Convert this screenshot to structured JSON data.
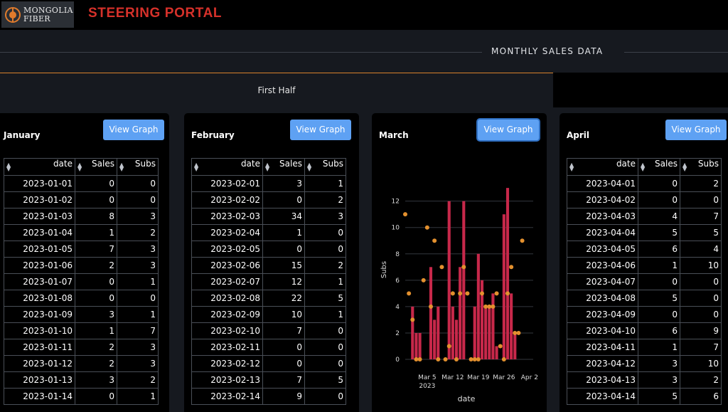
{
  "header": {
    "logo_line1": "MONGOLIA",
    "logo_line2": "FIBER",
    "title": "STEERING PORTAL"
  },
  "section": {
    "title": "MONTHLY SALES DATA"
  },
  "tabs": [
    {
      "label": "First Half",
      "active": true
    }
  ],
  "columns": {
    "date": "date",
    "sales": "Sales",
    "subs": "Subs"
  },
  "button_label": "View Graph",
  "colors": {
    "accent": "#d9822b",
    "title_red": "#d6312a",
    "button": "#5ea1f3",
    "bar": "#c7284a",
    "point": "#e3902e"
  },
  "months": [
    {
      "name": "January",
      "rows": [
        {
          "date": "2023-01-01",
          "sales": "0",
          "subs": "0"
        },
        {
          "date": "2023-01-02",
          "sales": "0",
          "subs": "0"
        },
        {
          "date": "2023-01-03",
          "sales": "8",
          "subs": "3"
        },
        {
          "date": "2023-01-04",
          "sales": "1",
          "subs": "2"
        },
        {
          "date": "2023-01-05",
          "sales": "7",
          "subs": "3"
        },
        {
          "date": "2023-01-06",
          "sales": "2",
          "subs": "3"
        },
        {
          "date": "2023-01-07",
          "sales": "0",
          "subs": "1"
        },
        {
          "date": "2023-01-08",
          "sales": "0",
          "subs": "0"
        },
        {
          "date": "2023-01-09",
          "sales": "3",
          "subs": "1"
        },
        {
          "date": "2023-01-10",
          "sales": "1",
          "subs": "7"
        },
        {
          "date": "2023-01-11",
          "sales": "2",
          "subs": "3"
        },
        {
          "date": "2023-01-12",
          "sales": "2",
          "subs": "3"
        },
        {
          "date": "2023-01-13",
          "sales": "3",
          "subs": "2"
        },
        {
          "date": "2023-01-14",
          "sales": "0",
          "subs": "1"
        }
      ]
    },
    {
      "name": "February",
      "rows": [
        {
          "date": "2023-02-01",
          "sales": "3",
          "subs": "1"
        },
        {
          "date": "2023-02-02",
          "sales": "0",
          "subs": "2"
        },
        {
          "date": "2023-02-03",
          "sales": "34",
          "subs": "3"
        },
        {
          "date": "2023-02-04",
          "sales": "1",
          "subs": "0"
        },
        {
          "date": "2023-02-05",
          "sales": "0",
          "subs": "0"
        },
        {
          "date": "2023-02-06",
          "sales": "15",
          "subs": "2"
        },
        {
          "date": "2023-02-07",
          "sales": "12",
          "subs": "1"
        },
        {
          "date": "2023-02-08",
          "sales": "22",
          "subs": "5"
        },
        {
          "date": "2023-02-09",
          "sales": "10",
          "subs": "1"
        },
        {
          "date": "2023-02-10",
          "sales": "7",
          "subs": "0"
        },
        {
          "date": "2023-02-11",
          "sales": "0",
          "subs": "0"
        },
        {
          "date": "2023-02-12",
          "sales": "0",
          "subs": "0"
        },
        {
          "date": "2023-02-13",
          "sales": "7",
          "subs": "5"
        },
        {
          "date": "2023-02-14",
          "sales": "9",
          "subs": "0"
        }
      ]
    },
    {
      "name": "March",
      "rows": []
    },
    {
      "name": "April",
      "rows": [
        {
          "date": "2023-04-01",
          "sales": "0",
          "subs": "2"
        },
        {
          "date": "2023-04-02",
          "sales": "0",
          "subs": "0"
        },
        {
          "date": "2023-04-03",
          "sales": "4",
          "subs": "7"
        },
        {
          "date": "2023-04-04",
          "sales": "5",
          "subs": "5"
        },
        {
          "date": "2023-04-05",
          "sales": "6",
          "subs": "4"
        },
        {
          "date": "2023-04-06",
          "sales": "1",
          "subs": "10"
        },
        {
          "date": "2023-04-07",
          "sales": "0",
          "subs": "0"
        },
        {
          "date": "2023-04-08",
          "sales": "5",
          "subs": "0"
        },
        {
          "date": "2023-04-09",
          "sales": "0",
          "subs": "0"
        },
        {
          "date": "2023-04-10",
          "sales": "6",
          "subs": "9"
        },
        {
          "date": "2023-04-11",
          "sales": "1",
          "subs": "7"
        },
        {
          "date": "2023-04-12",
          "sales": "3",
          "subs": "10"
        },
        {
          "date": "2023-04-13",
          "sales": "3",
          "subs": "2"
        },
        {
          "date": "2023-04-14",
          "sales": "5",
          "subs": "6"
        }
      ]
    }
  ],
  "chart_data": {
    "type": "bar",
    "title": "",
    "xlabel": "date",
    "ylabel": "Subs",
    "ylim": [
      0,
      13
    ],
    "yticks": [
      "0",
      "2",
      "4",
      "6",
      "8",
      "10",
      "12"
    ],
    "xticks": [
      "Mar 5",
      "Mar 12",
      "Mar 19",
      "Mar 26",
      "Apr 2"
    ],
    "xtick_sub": "2023",
    "grid": true,
    "bar_series": {
      "x": [
        "2023-03-01",
        "2023-03-02",
        "2023-03-03",
        "2023-03-04",
        "2023-03-05",
        "2023-03-06",
        "2023-03-07",
        "2023-03-08",
        "2023-03-09",
        "2023-03-10",
        "2023-03-11",
        "2023-03-12",
        "2023-03-13",
        "2023-03-14",
        "2023-03-15",
        "2023-03-16",
        "2023-03-17",
        "2023-03-18",
        "2023-03-19",
        "2023-03-20",
        "2023-03-21",
        "2023-03-22",
        "2023-03-23",
        "2023-03-24",
        "2023-03-25",
        "2023-03-26",
        "2023-03-27",
        "2023-03-28",
        "2023-03-29",
        "2023-03-30",
        "2023-03-31"
      ],
      "values": [
        4,
        2,
        2,
        0,
        0,
        7,
        3,
        4,
        0,
        0,
        12,
        4,
        3,
        7,
        12,
        0,
        0,
        4,
        8,
        6,
        4,
        4,
        5,
        1,
        0,
        11,
        13,
        5,
        2,
        0,
        0
      ]
    },
    "point_series": {
      "x": [
        "2023-02-27",
        "2023-02-28",
        "2023-03-01",
        "2023-03-02",
        "2023-03-03",
        "2023-03-04",
        "2023-03-05",
        "2023-03-06",
        "2023-03-07",
        "2023-03-08",
        "2023-03-09",
        "2023-03-10",
        "2023-03-11",
        "2023-03-12",
        "2023-03-13",
        "2023-03-14",
        "2023-03-15",
        "2023-03-16",
        "2023-03-17",
        "2023-03-18",
        "2023-03-19",
        "2023-03-20",
        "2023-03-21",
        "2023-03-22",
        "2023-03-23",
        "2023-03-24",
        "2023-03-25",
        "2023-03-26",
        "2023-03-27",
        "2023-03-28",
        "2023-03-29",
        "2023-03-30",
        "2023-03-31"
      ],
      "values": [
        11,
        5,
        3,
        0,
        0,
        6,
        10,
        4,
        9,
        0,
        7,
        0,
        1,
        5,
        0,
        5,
        7,
        5,
        0,
        0,
        0,
        5,
        4,
        4,
        4,
        5,
        1,
        0,
        5,
        7,
        2,
        2,
        9
      ]
    }
  }
}
